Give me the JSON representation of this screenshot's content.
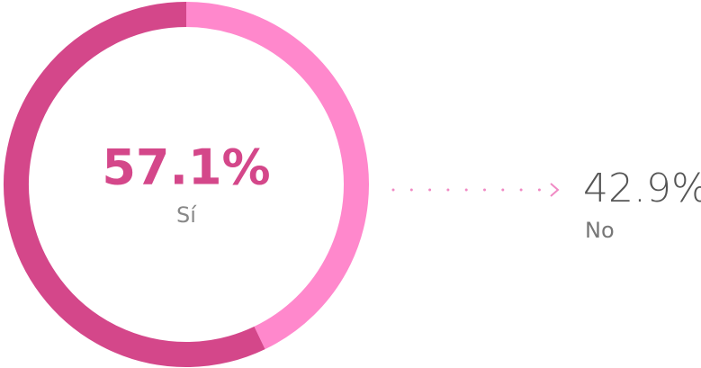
{
  "chart_data": {
    "type": "donut",
    "categories": [
      "Sí",
      "No"
    ],
    "values": [
      57.1,
      42.9
    ],
    "value_labels": [
      "57.1%",
      "42.9%"
    ],
    "colors": [
      "#d4478a",
      "#ff88cc"
    ]
  }
}
